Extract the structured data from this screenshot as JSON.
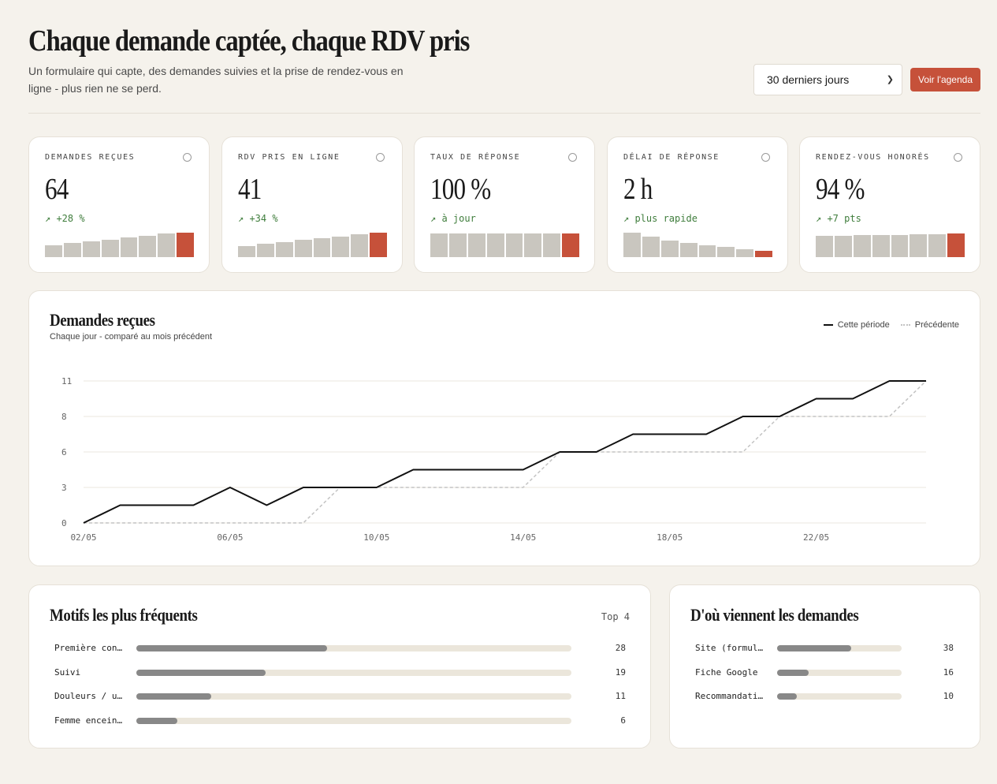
{
  "header": {
    "title": "Chaque demande captée, chaque RDV pris",
    "subtitle": "Un formulaire qui capte, des demandes suivies et la prise de rendez-vous en ligne - plus rien ne se perd.",
    "period_select": "30 derniers jours",
    "agenda_button": "Voir l'agenda"
  },
  "kpis": [
    {
      "label": "DEMANDES REÇUES",
      "value": "64",
      "delta": "↗ +28 %",
      "bars": [
        0.38,
        0.44,
        0.5,
        0.56,
        0.62,
        0.68,
        0.74,
        0.78
      ]
    },
    {
      "label": "RDV PRIS EN LIGNE",
      "value": "41",
      "delta": "↗ +34 %",
      "bars": [
        0.36,
        0.42,
        0.48,
        0.54,
        0.6,
        0.66,
        0.72,
        0.78
      ]
    },
    {
      "label": "TAUX DE RÉPONSE",
      "value": "100 %",
      "delta": "↗ à jour",
      "bars": [
        0.75,
        0.75,
        0.75,
        0.75,
        0.75,
        0.75,
        0.75,
        0.75
      ]
    },
    {
      "label": "DÉLAI DE RÉPONSE",
      "value": "2 h",
      "delta": "↗ plus rapide",
      "bars": [
        0.78,
        0.65,
        0.53,
        0.45,
        0.38,
        0.32,
        0.26,
        0.2
      ]
    },
    {
      "label": "RENDEZ-VOUS HONORÉS",
      "value": "94 %",
      "delta": "↗ +7 pts",
      "bars": [
        0.68,
        0.68,
        0.7,
        0.7,
        0.7,
        0.72,
        0.72,
        0.74
      ]
    }
  ],
  "chart": {
    "title": "Demandes reçues",
    "subtitle": "Chaque jour - comparé au mois précédent",
    "legend_current": "Cette période",
    "legend_previous": "Précédente"
  },
  "chart_data": {
    "type": "line",
    "x": [
      "02/05",
      "03/05",
      "04/05",
      "05/05",
      "06/05",
      "07/05",
      "08/05",
      "09/05",
      "10/05",
      "11/05",
      "12/05",
      "13/05",
      "14/05",
      "15/05",
      "16/05",
      "17/05",
      "18/05",
      "19/05",
      "20/05",
      "21/05",
      "22/05",
      "23/05",
      "24/05",
      "25/05"
    ],
    "x_tick_labels": [
      "02/05",
      "06/05",
      "10/05",
      "14/05",
      "18/05",
      "22/05"
    ],
    "y_tick_labels": [
      "0",
      "3",
      "6",
      "8",
      "11"
    ],
    "ylim": [
      0,
      12
    ],
    "series": [
      {
        "name": "Cette période",
        "values": [
          0,
          1.5,
          1.5,
          1.5,
          3,
          1.5,
          3,
          3,
          3,
          4.5,
          4.5,
          4.5,
          4.5,
          6,
          6,
          7.5,
          7.5,
          7.5,
          9,
          9,
          10.5,
          10.5,
          12,
          12
        ]
      },
      {
        "name": "Précédente",
        "values": [
          0,
          0,
          0,
          0,
          0,
          0,
          0,
          3,
          3,
          3,
          3,
          3,
          3,
          6,
          6,
          6,
          6,
          6,
          6,
          9,
          9,
          9,
          9,
          12
        ]
      }
    ],
    "grid": true,
    "legend": "top-right"
  },
  "motifs": {
    "title": "Motifs les plus fréquents",
    "badge": "Top 4",
    "max": 64,
    "items": [
      {
        "label": "Première con…",
        "value": 28
      },
      {
        "label": "Suivi",
        "value": 19
      },
      {
        "label": "Douleurs / u…",
        "value": 11
      },
      {
        "label": "Femme encein…",
        "value": 6
      }
    ]
  },
  "sources": {
    "title": "D'où viennent les demandes",
    "max": 64,
    "items": [
      {
        "label": "Site (formul…",
        "value": 38
      },
      {
        "label": "Fiche Google",
        "value": 16
      },
      {
        "label": "Recommandati…",
        "value": 10
      }
    ]
  },
  "colors": {
    "accent": "#c6513a",
    "bar_muted": "#c9c6bf",
    "positive": "#3f7d3c",
    "background": "#f5f2ec"
  }
}
